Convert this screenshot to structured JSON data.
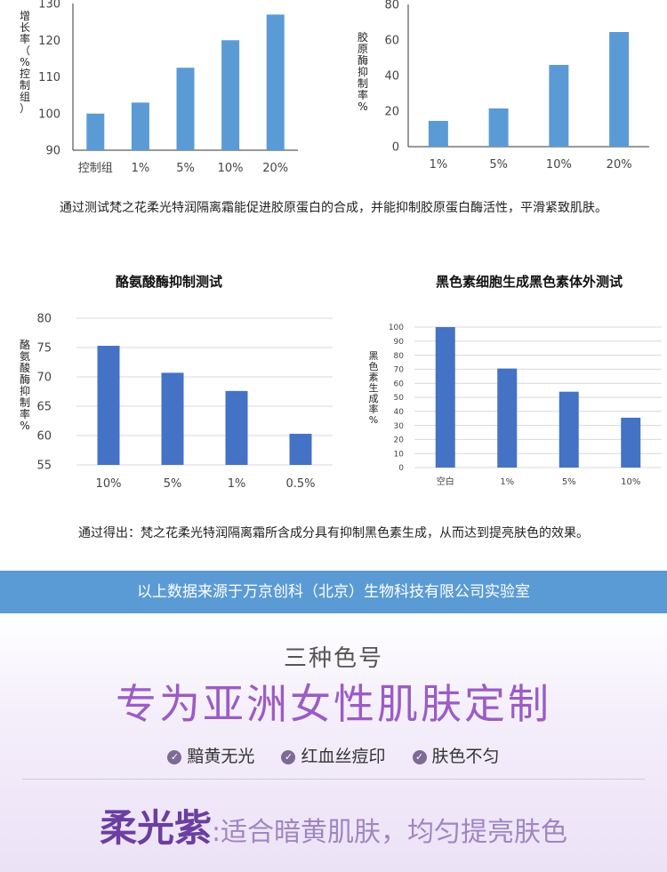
{
  "chart_data": [
    {
      "type": "bar",
      "ylabel": "增长率（%控制组）",
      "categories": [
        "控制组",
        "1%",
        "5%",
        "10%",
        "20%"
      ],
      "values": [
        100,
        103,
        112.5,
        120,
        127
      ],
      "ylim": [
        90,
        130
      ],
      "yticks": [
        90,
        100,
        110,
        120,
        130
      ],
      "color": "#5b9bd5",
      "grid": false
    },
    {
      "type": "bar",
      "ylabel": "胶原酶抑制率%",
      "categories": [
        "1%",
        "5%",
        "10%",
        "20%"
      ],
      "values": [
        14.5,
        21.5,
        46,
        64.5
      ],
      "ylim": [
        0,
        80
      ],
      "yticks": [
        0,
        20,
        40,
        60,
        80
      ],
      "color": "#5b9bd5",
      "grid": false
    },
    {
      "type": "bar",
      "title": "酪氨酸酶抑制测试",
      "ylabel": "酪氨酸酶抑制率%",
      "categories": [
        "10%",
        "5%",
        "1%",
        "0.5%"
      ],
      "values": [
        75.3,
        70.7,
        67.6,
        60.3
      ],
      "ylim": [
        55,
        80
      ],
      "yticks": [
        55,
        60,
        65,
        70,
        75,
        80
      ],
      "color": "#4472c4",
      "grid": true
    },
    {
      "type": "bar",
      "title": "黑色素细胞生成黑色素体外测试",
      "ylabel": "黑色素生成率%",
      "categories": [
        "空白",
        "1%",
        "5%",
        "10%"
      ],
      "values": [
        100,
        70.5,
        54,
        35.5
      ],
      "ylim": [
        0,
        100
      ],
      "yticks": [
        0,
        10,
        20,
        30,
        40,
        50,
        60,
        70,
        80,
        90,
        100
      ],
      "color": "#4472c4",
      "grid": true
    }
  ],
  "captions": {
    "first": "通过测试梵之花柔光特润隔离霜能促进胶原蛋白的合成，并能抑制胶原蛋白酶活性，平滑紧致肌肤。",
    "second": "通过得出：梵之花柔光特润隔离霜所含成分具有抑制黑色素生成，从而达到提亮肤色的效果。"
  },
  "banner": "以上数据来源于万京创科（北京）生物科技有限公司实验室",
  "promo": {
    "sub_title": "三种色号",
    "main_title": "专为亚洲女性肌肤定制",
    "tags": [
      "黯黄无光",
      "红血丝痘印",
      "肤色不匀"
    ],
    "shade_name": "柔光紫",
    "shade_desc": ":适合暗黄肌肤，均匀提亮肤色"
  }
}
